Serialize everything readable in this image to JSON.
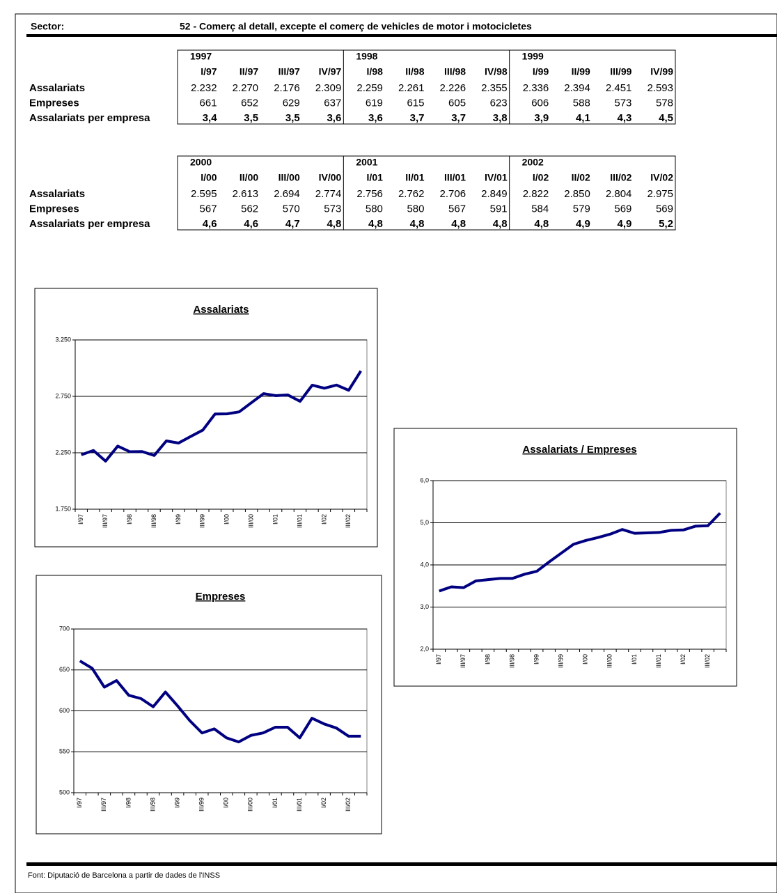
{
  "header": {
    "label": "Sector:",
    "value": "52 - Comerç al detall, excepte el comerç de vehicles de motor i motocicletes"
  },
  "tables": [
    {
      "years": [
        "1997",
        "1998",
        "1999"
      ],
      "quarters": [
        "I/97",
        "II/97",
        "III/97",
        "IV/97",
        "I/98",
        "II/98",
        "III/98",
        "IV/98",
        "I/99",
        "II/99",
        "III/99",
        "IV/99"
      ],
      "rows": [
        {
          "label": "Assalariats",
          "values": [
            "2.232",
            "2.270",
            "2.176",
            "2.309",
            "2.259",
            "2.261",
            "2.226",
            "2.355",
            "2.336",
            "2.394",
            "2.451",
            "2.593"
          ]
        },
        {
          "label": "Empreses",
          "values": [
            "661",
            "652",
            "629",
            "637",
            "619",
            "615",
            "605",
            "623",
            "606",
            "588",
            "573",
            "578"
          ]
        },
        {
          "label": "Assalariats per empresa",
          "values": [
            "3,4",
            "3,5",
            "3,5",
            "3,6",
            "3,6",
            "3,7",
            "3,7",
            "3,8",
            "3,9",
            "4,1",
            "4,3",
            "4,5"
          ]
        }
      ]
    },
    {
      "years": [
        "2000",
        "2001",
        "2002"
      ],
      "quarters": [
        "I/00",
        "II/00",
        "III/00",
        "IV/00",
        "I/01",
        "II/01",
        "III/01",
        "IV/01",
        "I/02",
        "II/02",
        "III/02",
        "IV/02"
      ],
      "rows": [
        {
          "label": "Assalariats",
          "values": [
            "2.595",
            "2.613",
            "2.694",
            "2.774",
            "2.756",
            "2.762",
            "2.706",
            "2.849",
            "2.822",
            "2.850",
            "2.804",
            "2.975"
          ]
        },
        {
          "label": "Empreses",
          "values": [
            "567",
            "562",
            "570",
            "573",
            "580",
            "580",
            "567",
            "591",
            "584",
            "579",
            "569",
            "569"
          ]
        },
        {
          "label": "Assalariats per empresa",
          "values": [
            "4,6",
            "4,6",
            "4,7",
            "4,8",
            "4,8",
            "4,8",
            "4,8",
            "4,8",
            "4,8",
            "4,9",
            "4,9",
            "5,2"
          ]
        }
      ]
    }
  ],
  "chart_data": [
    {
      "type": "line",
      "title": "Assalariats",
      "categories": [
        "I/97",
        null,
        "III/97",
        null,
        "I/98",
        null,
        "III/98",
        null,
        "I/99",
        null,
        "III/99",
        null,
        "I/00",
        null,
        "III/00",
        null,
        "I/01",
        null,
        "III/01",
        null,
        "I/02",
        null,
        "III/02",
        null
      ],
      "values": [
        2232,
        2270,
        2176,
        2309,
        2259,
        2261,
        2226,
        2355,
        2336,
        2394,
        2451,
        2593,
        2595,
        2613,
        2694,
        2774,
        2756,
        2762,
        2706,
        2849,
        2822,
        2850,
        2804,
        2975
      ],
      "color": "#000080",
      "ylim": [
        1750,
        3250
      ],
      "yticks": [
        {
          "value": 1750,
          "label": "1.750"
        },
        {
          "value": 2250,
          "label": "2.250"
        },
        {
          "value": 2750,
          "label": "2.750"
        },
        {
          "value": 3250,
          "label": "3.250"
        }
      ],
      "grid": true
    },
    {
      "type": "line",
      "title": "Empreses",
      "categories": [
        "I/97",
        null,
        "III/97",
        null,
        "I/98",
        null,
        "III/98",
        null,
        "I/99",
        null,
        "III/99",
        null,
        "I/00",
        null,
        "III/00",
        null,
        "I/01",
        null,
        "III/01",
        null,
        "I/02",
        null,
        "III/02",
        null
      ],
      "values": [
        661,
        652,
        629,
        637,
        619,
        615,
        605,
        623,
        606,
        588,
        573,
        578,
        567,
        562,
        570,
        573,
        580,
        580,
        567,
        591,
        584,
        579,
        569,
        569
      ],
      "color": "#000080",
      "ylim": [
        500,
        700
      ],
      "yticks": [
        500,
        550,
        600,
        650,
        700
      ],
      "grid": true
    },
    {
      "type": "line",
      "title": "Assalariats / Empreses",
      "categories": [
        "I/97",
        null,
        "III/97",
        null,
        "I/98",
        null,
        "III/98",
        null,
        "I/99",
        null,
        "III/99",
        null,
        "I/00",
        null,
        "III/00",
        null,
        "I/01",
        null,
        "III/01",
        null,
        "I/02",
        null,
        "III/02",
        null
      ],
      "values": [
        3.38,
        3.48,
        3.46,
        3.62,
        3.65,
        3.68,
        3.68,
        3.78,
        3.85,
        4.07,
        4.28,
        4.49,
        4.58,
        4.65,
        4.73,
        4.84,
        4.75,
        4.76,
        4.77,
        4.82,
        4.83,
        4.92,
        4.93,
        5.23
      ],
      "color": "#000080",
      "ylim": [
        2,
        6
      ],
      "yticks": [
        {
          "value": 2,
          "label": "2,0"
        },
        {
          "value": 3,
          "label": "3,0"
        },
        {
          "value": 4,
          "label": "4,0"
        },
        {
          "value": 5,
          "label": "5,0"
        },
        {
          "value": 6,
          "label": "6,0"
        }
      ],
      "grid": true
    }
  ],
  "footer": "Font: Diputació de Barcelona a partir de dades de l'INSS"
}
